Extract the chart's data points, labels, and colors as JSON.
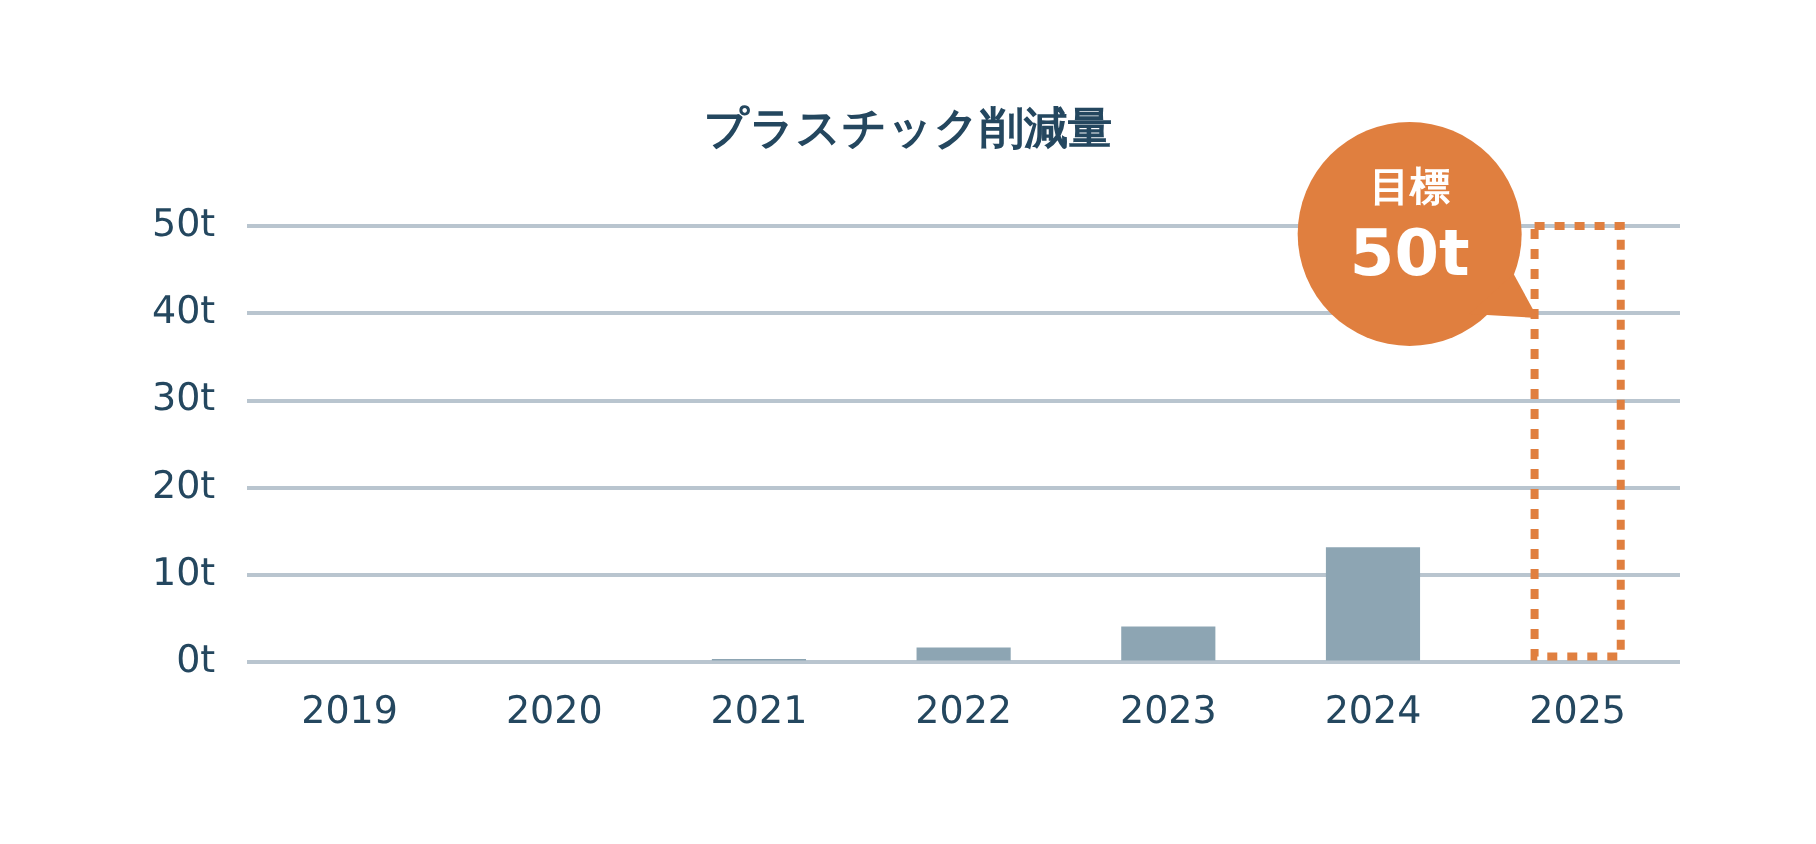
{
  "chart_data": {
    "type": "bar",
    "title": "プラスチック削減量",
    "categories": [
      "2019",
      "2020",
      "2021",
      "2022",
      "2023",
      "2024",
      "2025"
    ],
    "series": [
      {
        "color": "#8da5b3",
        "values": [
          0,
          0,
          0.4,
          1.7,
          4.1,
          13.2,
          null
        ]
      },
      {
        "color": "#e07f3f",
        "values": [
          null,
          null,
          null,
          null,
          null,
          null,
          50
        ],
        "line_style": "dotted"
      }
    ],
    "ylim": [
      0,
      50
    ],
    "yticks": [
      {
        "value": 0,
        "label": "0t"
      },
      {
        "value": 10,
        "label": "10t"
      },
      {
        "value": 20,
        "label": "20t"
      },
      {
        "value": 30,
        "label": "30t"
      },
      {
        "value": 40,
        "label": "40t"
      },
      {
        "value": 50,
        "label": "50t"
      }
    ],
    "grid": "y",
    "legend": false,
    "annotations": [
      {
        "text": "目標\n50t",
        "x": "2025",
        "y": 50
      }
    ]
  }
}
